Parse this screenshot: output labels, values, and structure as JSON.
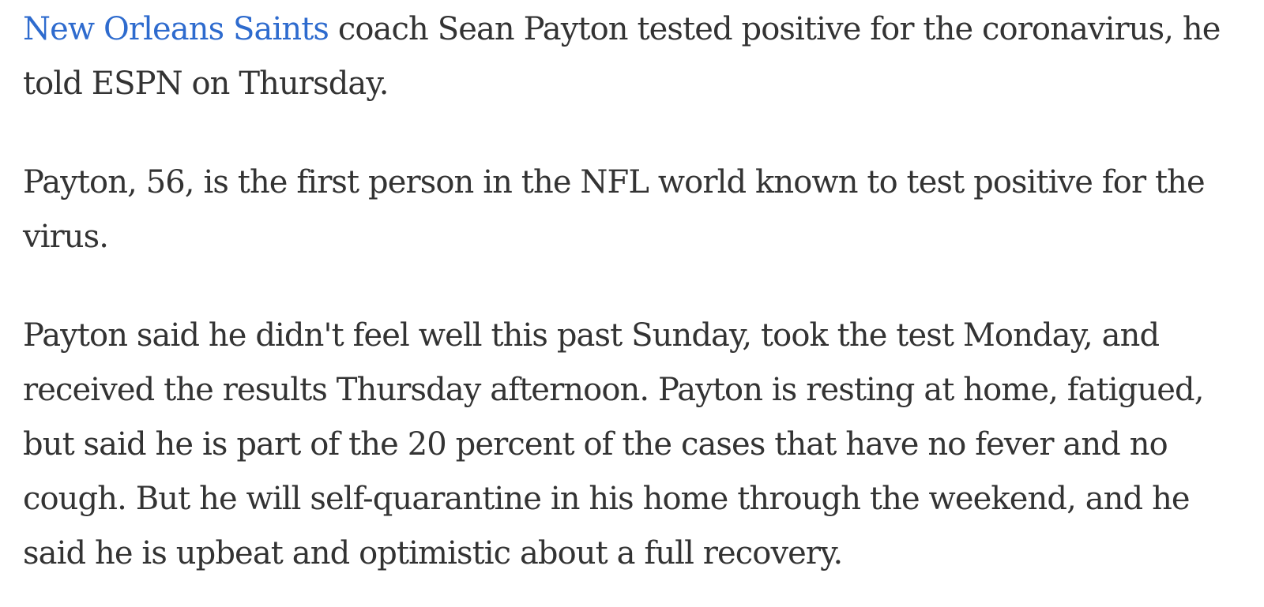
{
  "article": {
    "paragraph1": {
      "link_text": "New Orleans Saints",
      "text": " coach Sean Payton tested positive for the coronavirus, he told ESPN on Thursday."
    },
    "paragraph2": {
      "text": "Payton, 56, is the first person in the NFL world known to test positive for the virus."
    },
    "paragraph3": {
      "text": "Payton said he didn't feel well this past Sunday, took the test Monday, and received the results Thursday afternoon. Payton is resting at home, fatigued, but said he is part of the 20 percent of the cases that have no fever and no cough. But he will self-quarantine in his home through the weekend, and he said he is upbeat and optimistic about a full recovery."
    }
  },
  "colors": {
    "body_text": "#333333",
    "link": "#2e6bce",
    "background": "#ffffff"
  }
}
